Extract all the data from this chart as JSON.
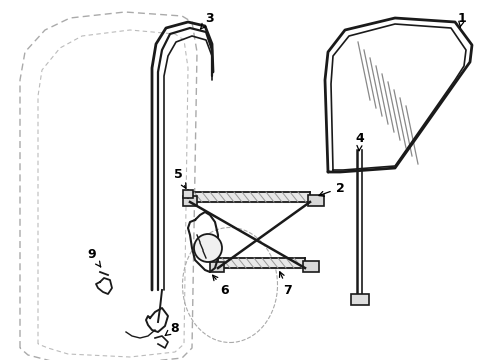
{
  "background_color": "#ffffff",
  "line_color": "#1a1a1a",
  "figsize": [
    4.89,
    3.6
  ],
  "dpi": 100,
  "door_outer": {
    "x": [
      18,
      18,
      22,
      35,
      55,
      105,
      168,
      178,
      182,
      178,
      168,
      55,
      30,
      22,
      18
    ],
    "y": [
      340,
      95,
      70,
      48,
      32,
      22,
      20,
      24,
      50,
      340,
      350,
      358,
      355,
      348,
      340
    ]
  },
  "door_inner": {
    "x": [
      38,
      38,
      42,
      55,
      75,
      125,
      160,
      168,
      172,
      168,
      160,
      75,
      50,
      42,
      38
    ],
    "y": [
      335,
      110,
      88,
      68,
      52,
      42,
      40,
      44,
      68,
      335,
      345,
      350,
      348,
      342,
      335
    ]
  }
}
